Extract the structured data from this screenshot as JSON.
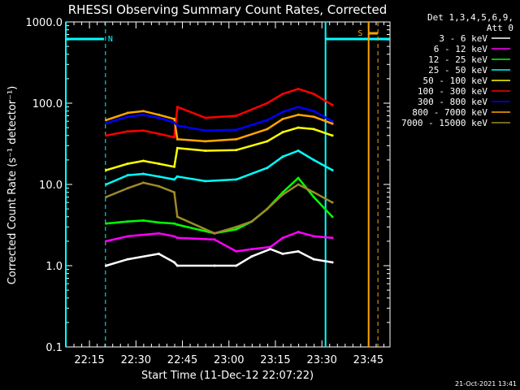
{
  "chart_data": {
    "type": "line",
    "title": "RHESSI Observing Summary Count Rates, Corrected",
    "xlabel": "Start Time (11-Dec-12 22:07:22)",
    "ylabel": "Corrected Count Rate (s⁻¹ detector⁻¹)",
    "y_scale": "log",
    "ylim": [
      0.1,
      1000
    ],
    "xlim_minutes": [
      0,
      104.6
    ],
    "x_tick_labels": [
      "22:15",
      "22:30",
      "22:45",
      "23:00",
      "23:15",
      "23:30",
      "23:45"
    ],
    "x_tick_minutes": [
      7.63,
      22.63,
      37.63,
      52.63,
      67.63,
      82.63,
      97.63
    ],
    "y_tick_labels": [
      "0.1",
      "1.0",
      "10.0",
      "100.0",
      "1000.0"
    ],
    "y_tick_values": [
      0.1,
      1,
      10,
      100,
      1000
    ],
    "legend": {
      "header": [
        "Det 1,3,4,5,6,9,",
        "Att 0"
      ],
      "placement": "top-right outside"
    },
    "series": [
      {
        "name": "3 - 6 keV",
        "color": "#ffffff",
        "x": [
          13,
          20,
          30,
          35,
          36,
          48,
          55,
          60,
          66,
          70,
          75,
          80,
          86
        ],
        "y": [
          1.0,
          1.2,
          1.4,
          1.1,
          1.0,
          1.0,
          1.0,
          1.3,
          1.6,
          1.4,
          1.5,
          1.2,
          1.1
        ]
      },
      {
        "name": "6 - 12 keV",
        "color": "#ff00ff",
        "x": [
          13,
          20,
          30,
          35,
          36,
          48,
          55,
          60,
          66,
          70,
          75,
          80,
          86
        ],
        "y": [
          2.0,
          2.3,
          2.5,
          2.3,
          2.2,
          2.1,
          1.5,
          1.6,
          1.7,
          2.2,
          2.6,
          2.3,
          2.2
        ]
      },
      {
        "name": "12 - 25 keV",
        "color": "#00ff00",
        "x": [
          13,
          20,
          25,
          30,
          35,
          36,
          48,
          55,
          60,
          65,
          70,
          75,
          80,
          86
        ],
        "y": [
          3.3,
          3.5,
          3.6,
          3.4,
          3.3,
          3.2,
          2.5,
          2.8,
          3.5,
          5.0,
          8.0,
          12.0,
          7.0,
          4.0
        ]
      },
      {
        "name": "25 - 50 keV",
        "color": "#00ffff",
        "x": [
          13,
          20,
          25,
          30,
          35,
          36,
          45,
          55,
          65,
          70,
          75,
          80,
          86
        ],
        "y": [
          10.0,
          13.0,
          13.5,
          12.5,
          11.5,
          12.5,
          11.0,
          11.5,
          16.0,
          22.0,
          26.0,
          20.0,
          15.0
        ]
      },
      {
        "name": "50 - 100 keV",
        "color": "#ffff00",
        "x": [
          13,
          20,
          25,
          30,
          35,
          36,
          45,
          55,
          65,
          70,
          75,
          80,
          86
        ],
        "y": [
          15.0,
          18.0,
          19.5,
          18.0,
          16.5,
          28.0,
          26.0,
          26.5,
          34.0,
          44.0,
          50.0,
          48.0,
          40.0
        ]
      },
      {
        "name": "100 - 300 keV",
        "color": "#ff0000",
        "x": [
          13,
          20,
          25,
          30,
          35,
          36,
          45,
          55,
          65,
          70,
          75,
          80,
          86
        ],
        "y": [
          40.0,
          45.0,
          46.0,
          42.0,
          38.0,
          90.0,
          66.0,
          70.0,
          100.0,
          130.0,
          150.0,
          130.0,
          95.0
        ]
      },
      {
        "name": "300 - 800 keV",
        "color": "#0000ff",
        "x": [
          13,
          20,
          25,
          30,
          35,
          36,
          45,
          55,
          65,
          70,
          75,
          80,
          86
        ],
        "y": [
          57.0,
          68.0,
          72.0,
          66.0,
          58.0,
          53.0,
          46.0,
          47.0,
          62.0,
          78.0,
          90.0,
          80.0,
          60.0
        ]
      },
      {
        "name": "800 - 7000 keV",
        "color": "#ffa500",
        "x": [
          13,
          20,
          25,
          30,
          35,
          36,
          45,
          55,
          65,
          70,
          75,
          80,
          86
        ],
        "y": [
          62.0,
          76.0,
          80.0,
          72.0,
          64.0,
          36.0,
          34.0,
          36.0,
          48.0,
          64.0,
          72.0,
          68.0,
          56.0
        ]
      },
      {
        "name": "7000 - 15000 keV",
        "color": "#9c8b28",
        "x": [
          13,
          20,
          25,
          30,
          35,
          36,
          48,
          55,
          60,
          65,
          70,
          75,
          80,
          86
        ],
        "y": [
          7.0,
          9.0,
          10.5,
          9.5,
          8.0,
          4.0,
          2.5,
          3.0,
          3.5,
          5.0,
          7.5,
          10.0,
          8.0,
          6.0
        ]
      }
    ],
    "annotations": [
      {
        "text": "N",
        "color": "#00ffff"
      },
      {
        "text": "S",
        "color": "#ffa500"
      }
    ],
    "footer": "21-Oct-2021 13:41"
  }
}
